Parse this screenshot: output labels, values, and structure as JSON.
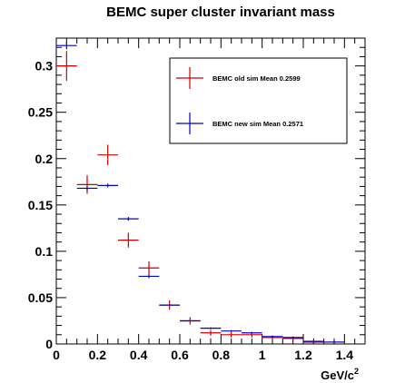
{
  "chart_data": {
    "type": "scatter",
    "title": "BEMC super cluster invariant mass",
    "xlabel": "GeV/c",
    "xlabel_superscript": "2",
    "ylabel": "",
    "xlim": [
      0,
      1.5
    ],
    "ylim": [
      0,
      0.33
    ],
    "x_ticks": [
      "0",
      "0.2",
      "0.4",
      "0.6",
      "0.8",
      "1",
      "1.2",
      "1.4"
    ],
    "x_tick_values": [
      0,
      0.2,
      0.4,
      0.6,
      0.8,
      1.0,
      1.2,
      1.4
    ],
    "y_ticks": [
      "0",
      "0.05",
      "0.1",
      "0.15",
      "0.2",
      "0.25",
      "0.3"
    ],
    "y_tick_values": [
      0,
      0.05,
      0.1,
      0.15,
      0.2,
      0.25,
      0.3
    ],
    "grid": false,
    "legend_placement": "top-right",
    "series": [
      {
        "name": "BEMC old sim Mean 0.2599",
        "color": "#cc0000",
        "x": [
          0.05,
          0.15,
          0.25,
          0.35,
          0.45,
          0.55,
          0.65,
          0.75,
          0.85,
          0.95,
          1.05,
          1.15,
          1.25,
          1.35
        ],
        "y": [
          0.3,
          0.172,
          0.204,
          0.112,
          0.082,
          0.042,
          0.025,
          0.012,
          0.01,
          0.01,
          0.007,
          0.006,
          0.003,
          0.002
        ],
        "y_err": [
          0.016,
          0.01,
          0.011,
          0.008,
          0.007,
          0.005,
          0.004,
          0.003,
          0.003,
          0.003,
          0.002,
          0.002,
          0.001,
          0.001
        ]
      },
      {
        "name": "BEMC new sim Mean 0.2571",
        "color": "#0000cc",
        "x": [
          0.05,
          0.15,
          0.25,
          0.35,
          0.45,
          0.55,
          0.65,
          0.75,
          0.85,
          0.95,
          1.05,
          1.15,
          1.25,
          1.35
        ],
        "y": [
          0.322,
          0.168,
          0.171,
          0.135,
          0.073,
          0.042,
          0.025,
          0.017,
          0.014,
          0.012,
          0.008,
          0.007,
          0.002,
          0.002
        ],
        "y_err": [
          0.004,
          0.002,
          0.002,
          0.002,
          0.002,
          0.001,
          0.001,
          0.001,
          0.001,
          0.001,
          0.001,
          0.001,
          0.001,
          0.001
        ]
      }
    ]
  }
}
